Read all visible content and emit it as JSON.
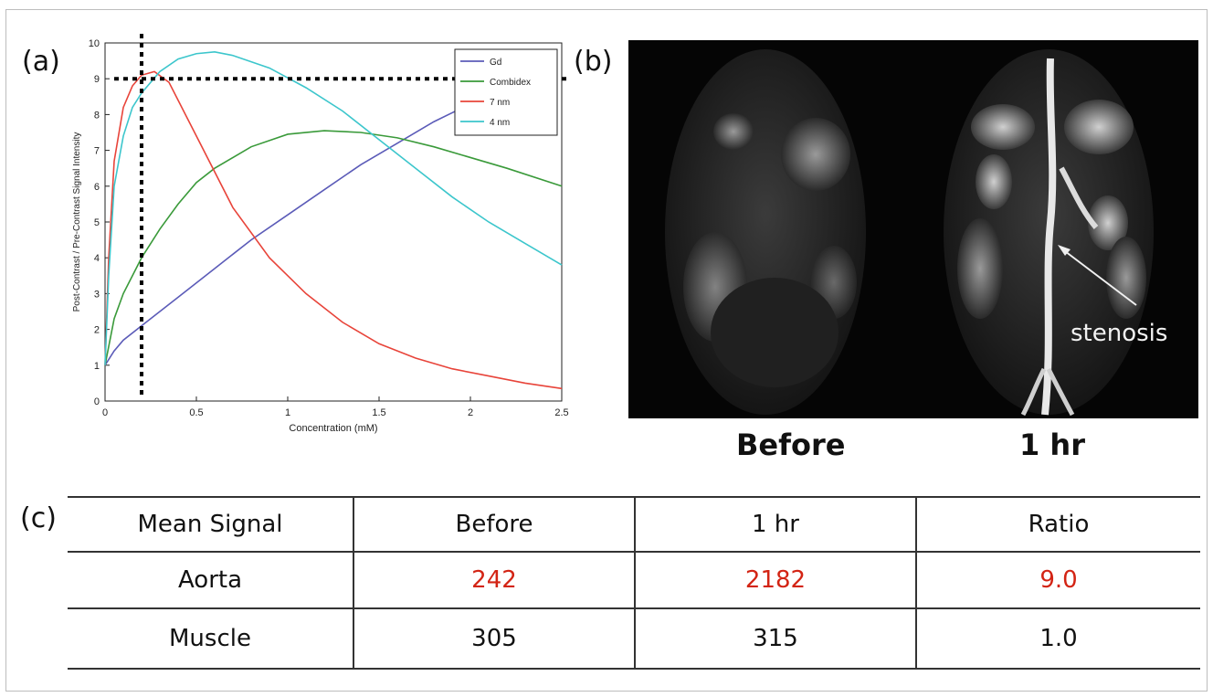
{
  "panels": {
    "a": "(a)",
    "b": "(b)",
    "c": "(c)"
  },
  "chart_data": {
    "type": "line",
    "xlabel": "Concentration (mM)",
    "ylabel": "Post-Contrast / Pre-Contrast Signal Intensity",
    "xlim": [
      0,
      2.5
    ],
    "ylim": [
      0,
      10
    ],
    "xticks": [
      "0",
      "0.5",
      "1",
      "1.5",
      "2",
      "2.5"
    ],
    "yticks": [
      "0",
      "1",
      "2",
      "3",
      "4",
      "5",
      "6",
      "7",
      "8",
      "9",
      "10"
    ],
    "legend_position": "top-right",
    "reference_lines": {
      "x": 0.2,
      "y": 9.0
    },
    "series": [
      {
        "name": "Gd",
        "color": "#5b5bb8",
        "x": [
          0,
          0.05,
          0.1,
          0.2,
          0.4,
          0.6,
          0.8,
          1.0,
          1.2,
          1.4,
          1.6,
          1.8,
          2.0
        ],
        "y": [
          1.0,
          1.4,
          1.7,
          2.1,
          2.9,
          3.7,
          4.5,
          5.2,
          5.9,
          6.6,
          7.2,
          7.8,
          8.3
        ]
      },
      {
        "name": "Combidex",
        "color": "#3a9a3a",
        "x": [
          0,
          0.05,
          0.1,
          0.2,
          0.3,
          0.4,
          0.5,
          0.6,
          0.8,
          1.0,
          1.2,
          1.4,
          1.6,
          1.8,
          2.0,
          2.2,
          2.5
        ],
        "y": [
          1.0,
          2.3,
          3.0,
          4.0,
          4.8,
          5.5,
          6.1,
          6.5,
          7.1,
          7.45,
          7.55,
          7.5,
          7.35,
          7.1,
          6.8,
          6.5,
          6.0
        ]
      },
      {
        "name": "7 nm",
        "color": "#e8443a",
        "x": [
          0,
          0.02,
          0.05,
          0.1,
          0.15,
          0.2,
          0.27,
          0.35,
          0.5,
          0.7,
          0.9,
          1.1,
          1.3,
          1.5,
          1.7,
          1.9,
          2.1,
          2.3,
          2.5
        ],
        "y": [
          1.0,
          4.0,
          6.7,
          8.2,
          8.8,
          9.1,
          9.2,
          8.9,
          7.4,
          5.4,
          4.0,
          3.0,
          2.2,
          1.6,
          1.2,
          0.9,
          0.7,
          0.5,
          0.35
        ]
      },
      {
        "name": "4 nm",
        "color": "#3cc6cc",
        "x": [
          0,
          0.02,
          0.05,
          0.1,
          0.15,
          0.2,
          0.3,
          0.4,
          0.5,
          0.6,
          0.7,
          0.9,
          1.1,
          1.3,
          1.5,
          1.7,
          1.9,
          2.1,
          2.3,
          2.5
        ],
        "y": [
          1.0,
          3.5,
          6.0,
          7.4,
          8.2,
          8.6,
          9.2,
          9.55,
          9.7,
          9.75,
          9.65,
          9.3,
          8.75,
          8.1,
          7.3,
          6.5,
          5.7,
          5.0,
          4.4,
          3.8
        ]
      }
    ]
  },
  "mri": {
    "caption_before": "Before",
    "caption_after": "1 hr",
    "annotation": "stenosis"
  },
  "table": {
    "headers": [
      "Mean Signal",
      "Before",
      "1 hr",
      "Ratio"
    ],
    "rows": [
      {
        "label": "Aorta",
        "before": "242",
        "after": "2182",
        "ratio": "9.0"
      },
      {
        "label": "Muscle",
        "before": "305",
        "after": "315",
        "ratio": "1.0"
      }
    ],
    "highlight_color": "#d32414"
  }
}
